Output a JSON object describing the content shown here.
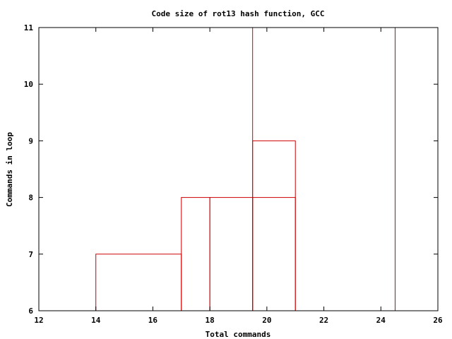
{
  "chart_data": {
    "type": "bar",
    "title": "Code size of rot13 hash function, GCC",
    "xlabel": "Total commands",
    "ylabel": "Commands in loop",
    "xlim": [
      12,
      26
    ],
    "ylim": [
      6,
      11
    ],
    "xticks": [
      "12",
      "14",
      "16",
      "18",
      "20",
      "22",
      "24",
      "26"
    ],
    "yticks": [
      "6",
      "7",
      "8",
      "9",
      "10",
      "11"
    ],
    "grid": false,
    "legend": "none",
    "series_color": "#cc0000",
    "bars": [
      {
        "x_start": 14,
        "x_end": 17,
        "y": 7
      },
      {
        "x_start": 17,
        "x_end": 18,
        "y": 8
      },
      {
        "x_start": 18,
        "x_end": 19.5,
        "y": 8
      },
      {
        "x_start": 19.5,
        "x_end": 21,
        "y": 8
      },
      {
        "x_start": 19.5,
        "x_end": 21,
        "y": 9
      },
      {
        "x_start": 19.5,
        "x_end": 24.5,
        "y": 11
      }
    ]
  }
}
